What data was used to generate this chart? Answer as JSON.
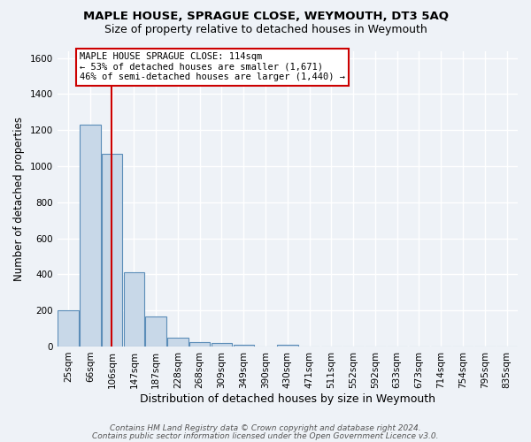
{
  "title": "MAPLE HOUSE, SPRAGUE CLOSE, WEYMOUTH, DT3 5AQ",
  "subtitle": "Size of property relative to detached houses in Weymouth",
  "xlabel": "Distribution of detached houses by size in Weymouth",
  "ylabel": "Number of detached properties",
  "bar_labels": [
    "25sqm",
    "66sqm",
    "106sqm",
    "147sqm",
    "187sqm",
    "228sqm",
    "268sqm",
    "309sqm",
    "349sqm",
    "390sqm",
    "430sqm",
    "471sqm",
    "511sqm",
    "552sqm",
    "592sqm",
    "633sqm",
    "673sqm",
    "714sqm",
    "754sqm",
    "795sqm",
    "835sqm"
  ],
  "bar_values": [
    200,
    1230,
    1070,
    410,
    165,
    50,
    25,
    18,
    12,
    0,
    11,
    0,
    0,
    0,
    0,
    0,
    0,
    0,
    0,
    0,
    0
  ],
  "bar_color": "#c8d8e8",
  "bar_edge_color": "#5b8db8",
  "vline_x": 1.97,
  "vline_color": "#cc0000",
  "annotation_text": "MAPLE HOUSE SPRAGUE CLOSE: 114sqm\n← 53% of detached houses are smaller (1,671)\n46% of semi-detached houses are larger (1,440) →",
  "annotation_box_color": "#ffffff",
  "annotation_box_edge": "#cc0000",
  "ylim": [
    0,
    1640
  ],
  "yticks": [
    0,
    200,
    400,
    600,
    800,
    1000,
    1200,
    1400,
    1600
  ],
  "background_color": "#eef2f7",
  "grid_color": "#ffffff",
  "footer_line1": "Contains HM Land Registry data © Crown copyright and database right 2024.",
  "footer_line2": "Contains public sector information licensed under the Open Government Licence v3.0.",
  "title_fontsize": 9.5,
  "subtitle_fontsize": 9,
  "xlabel_fontsize": 9,
  "ylabel_fontsize": 8.5,
  "tick_fontsize": 7.5,
  "footer_fontsize": 6.5,
  "annot_fontsize": 7.5
}
